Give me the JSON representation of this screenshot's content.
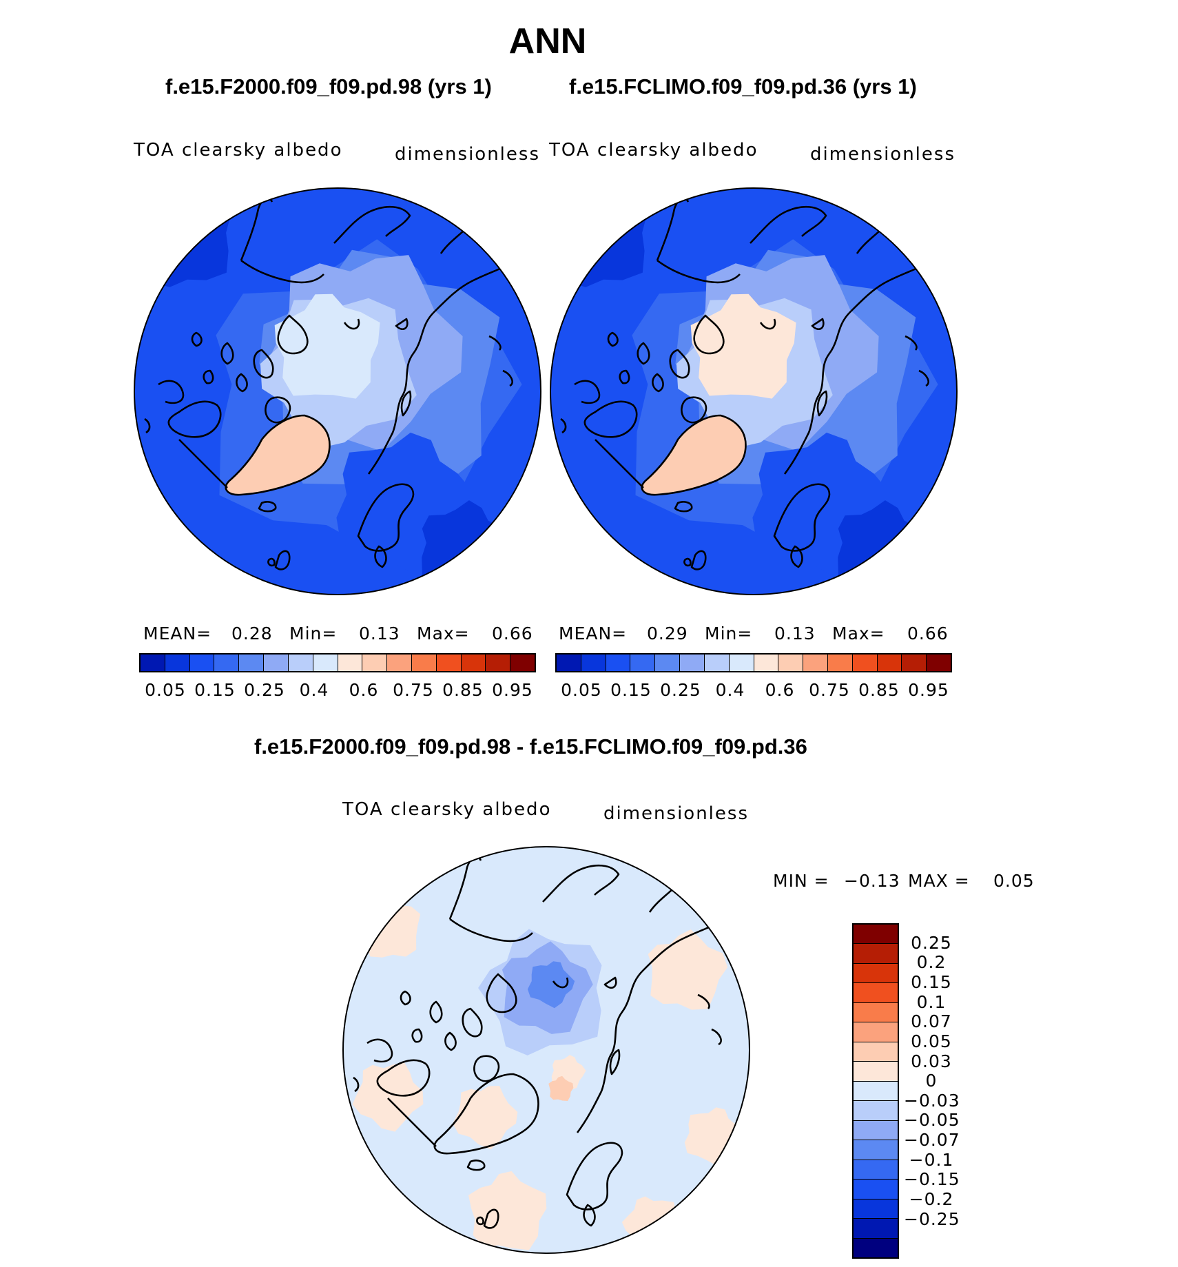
{
  "page_title": "ANN",
  "colors": {
    "seq": [
      "#00007f",
      "#0018b2",
      "#0836dc",
      "#1a50f2",
      "#3569f2",
      "#5c89f2",
      "#8faaf5",
      "#b9cefa",
      "#d9e9fc",
      "#fde7d9",
      "#fdcdb3",
      "#fba27d",
      "#f97c4a",
      "#f0501f",
      "#d8340a",
      "#b51e05",
      "#7f0000"
    ],
    "diff": [
      "#00007f",
      "#0018b2",
      "#0836dc",
      "#1a50f2",
      "#3569f2",
      "#5c89f2",
      "#8faaf5",
      "#b9cefa",
      "#d9e9fc",
      "#fde7d9",
      "#fdcdb3",
      "#fba27d",
      "#f97c4a",
      "#f0501f",
      "#d8340a",
      "#b51e05",
      "#7f0000"
    ],
    "land": "#000000"
  },
  "panel_left": {
    "case_title": "f.e15.F2000.f09_f09.pd.98 (yrs 1)",
    "variable": "TOA clearsky albedo",
    "units": "dimensionless",
    "mean_label": "MEAN=",
    "mean_value": "0.28",
    "min_label": "Min=",
    "min_value": "0.13",
    "max_label": "Max=",
    "max_value": "0.66",
    "colorbar_labels": [
      "0.05",
      "0.15",
      "0.25",
      "0.4",
      "0.6",
      "0.75",
      "0.85",
      "0.95"
    ]
  },
  "panel_right": {
    "case_title": "f.e15.FCLIMO.f09_f09.pd.36 (yrs 1)",
    "variable": "TOA clearsky albedo",
    "units": "dimensionless",
    "mean_label": "MEAN=",
    "mean_value": "0.29",
    "min_label": "Min=",
    "min_value": "0.13",
    "max_label": "Max=",
    "max_value": "0.66",
    "colorbar_labels": [
      "0.05",
      "0.15",
      "0.25",
      "0.4",
      "0.6",
      "0.75",
      "0.85",
      "0.95"
    ]
  },
  "panel_diff": {
    "title": "f.e15.F2000.f09_f09.pd.98 - f.e15.FCLIMO.f09_f09.pd.36",
    "variable": "TOA clearsky albedo",
    "units": "dimensionless",
    "min_label": "MIN =",
    "min_value": "−0.13",
    "max_label": "MAX =",
    "max_value": "0.05",
    "colorbar_labels": [
      "0.25",
      "0.2",
      "0.15",
      "0.1",
      "0.07",
      "0.05",
      "0.03",
      "0",
      "−0.03",
      "−0.05",
      "−0.07",
      "−0.1",
      "−0.15",
      "−0.2",
      "−0.25"
    ]
  }
}
